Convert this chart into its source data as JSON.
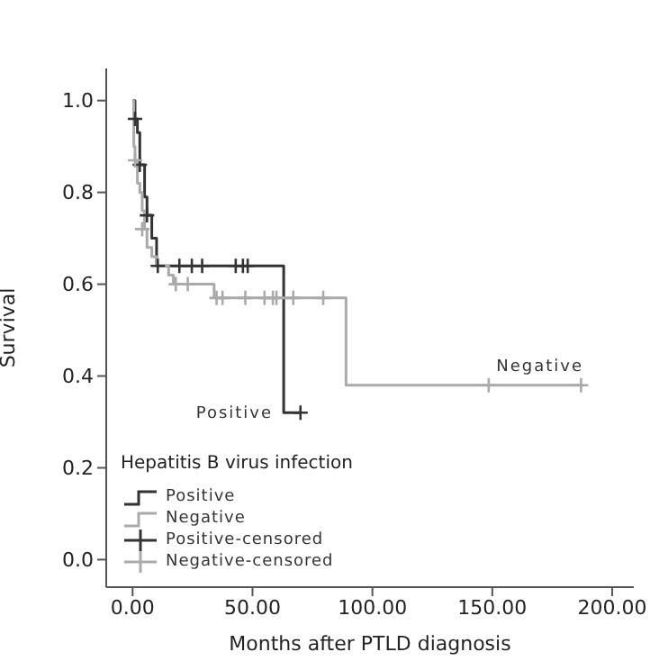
{
  "chart_data": {
    "type": "step",
    "xlabel": "Months after PTLD diagnosis",
    "ylabel": "Survival",
    "legend_title": "Hepatitis B virus infection",
    "legend": "bottom left",
    "xlim": [
      -11,
      209
    ],
    "ylim": [
      -0.06,
      1.07
    ],
    "xticks": [
      {
        "value": 0,
        "label": "0.00"
      },
      {
        "value": 50,
        "label": "50.00"
      },
      {
        "value": 100,
        "label": "100.00"
      },
      {
        "value": 150,
        "label": "150.00"
      },
      {
        "value": 200,
        "label": "200.00"
      }
    ],
    "yticks": [
      {
        "value": 0,
        "label": "0.0"
      },
      {
        "value": 0.2,
        "label": "0.2"
      },
      {
        "value": 0.4,
        "label": "0.4"
      },
      {
        "value": 0.6,
        "label": "0.6"
      },
      {
        "value": 0.8,
        "label": "0.8"
      },
      {
        "value": 1,
        "label": "1.0"
      }
    ],
    "grid": false,
    "series": [
      {
        "name": "Positive",
        "color": "#333333",
        "x": [
          0,
          1,
          2,
          3,
          5,
          6,
          8,
          10,
          63,
          70
        ],
        "values": [
          1.0,
          0.96,
          0.93,
          0.86,
          0.79,
          0.75,
          0.7,
          0.64,
          0.32,
          0.32
        ]
      },
      {
        "name": "Negative",
        "color": "#aaaaaa",
        "x": [
          0,
          0.5,
          1,
          2,
          3,
          4,
          5,
          6,
          8,
          10,
          15,
          17,
          34,
          89,
          188
        ],
        "values": [
          1.0,
          0.9,
          0.87,
          0.82,
          0.8,
          0.76,
          0.72,
          0.68,
          0.66,
          0.64,
          0.62,
          0.6,
          0.57,
          0.38,
          0.38
        ]
      },
      {
        "name": "Positive-censored",
        "type": "scatter",
        "marker": "cross",
        "color": "#333333",
        "x": [
          1,
          3,
          6,
          10.5,
          19.5,
          24.7,
          29,
          43,
          46,
          48,
          70
        ],
        "values": [
          0.96,
          0.86,
          0.75,
          0.64,
          0.64,
          0.64,
          0.64,
          0.64,
          0.64,
          0.64,
          0.32
        ]
      },
      {
        "name": "Negative-censored",
        "type": "scatter",
        "marker": "cross",
        "color": "#aaaaaa",
        "x": [
          1,
          4,
          18,
          23,
          35,
          37.5,
          47,
          55,
          58.5,
          60,
          67,
          79.5,
          148.5,
          187
        ],
        "values": [
          0.87,
          0.72,
          0.6,
          0.6,
          0.57,
          0.57,
          0.57,
          0.57,
          0.57,
          0.57,
          0.57,
          0.57,
          0.38,
          0.38
        ]
      }
    ]
  }
}
